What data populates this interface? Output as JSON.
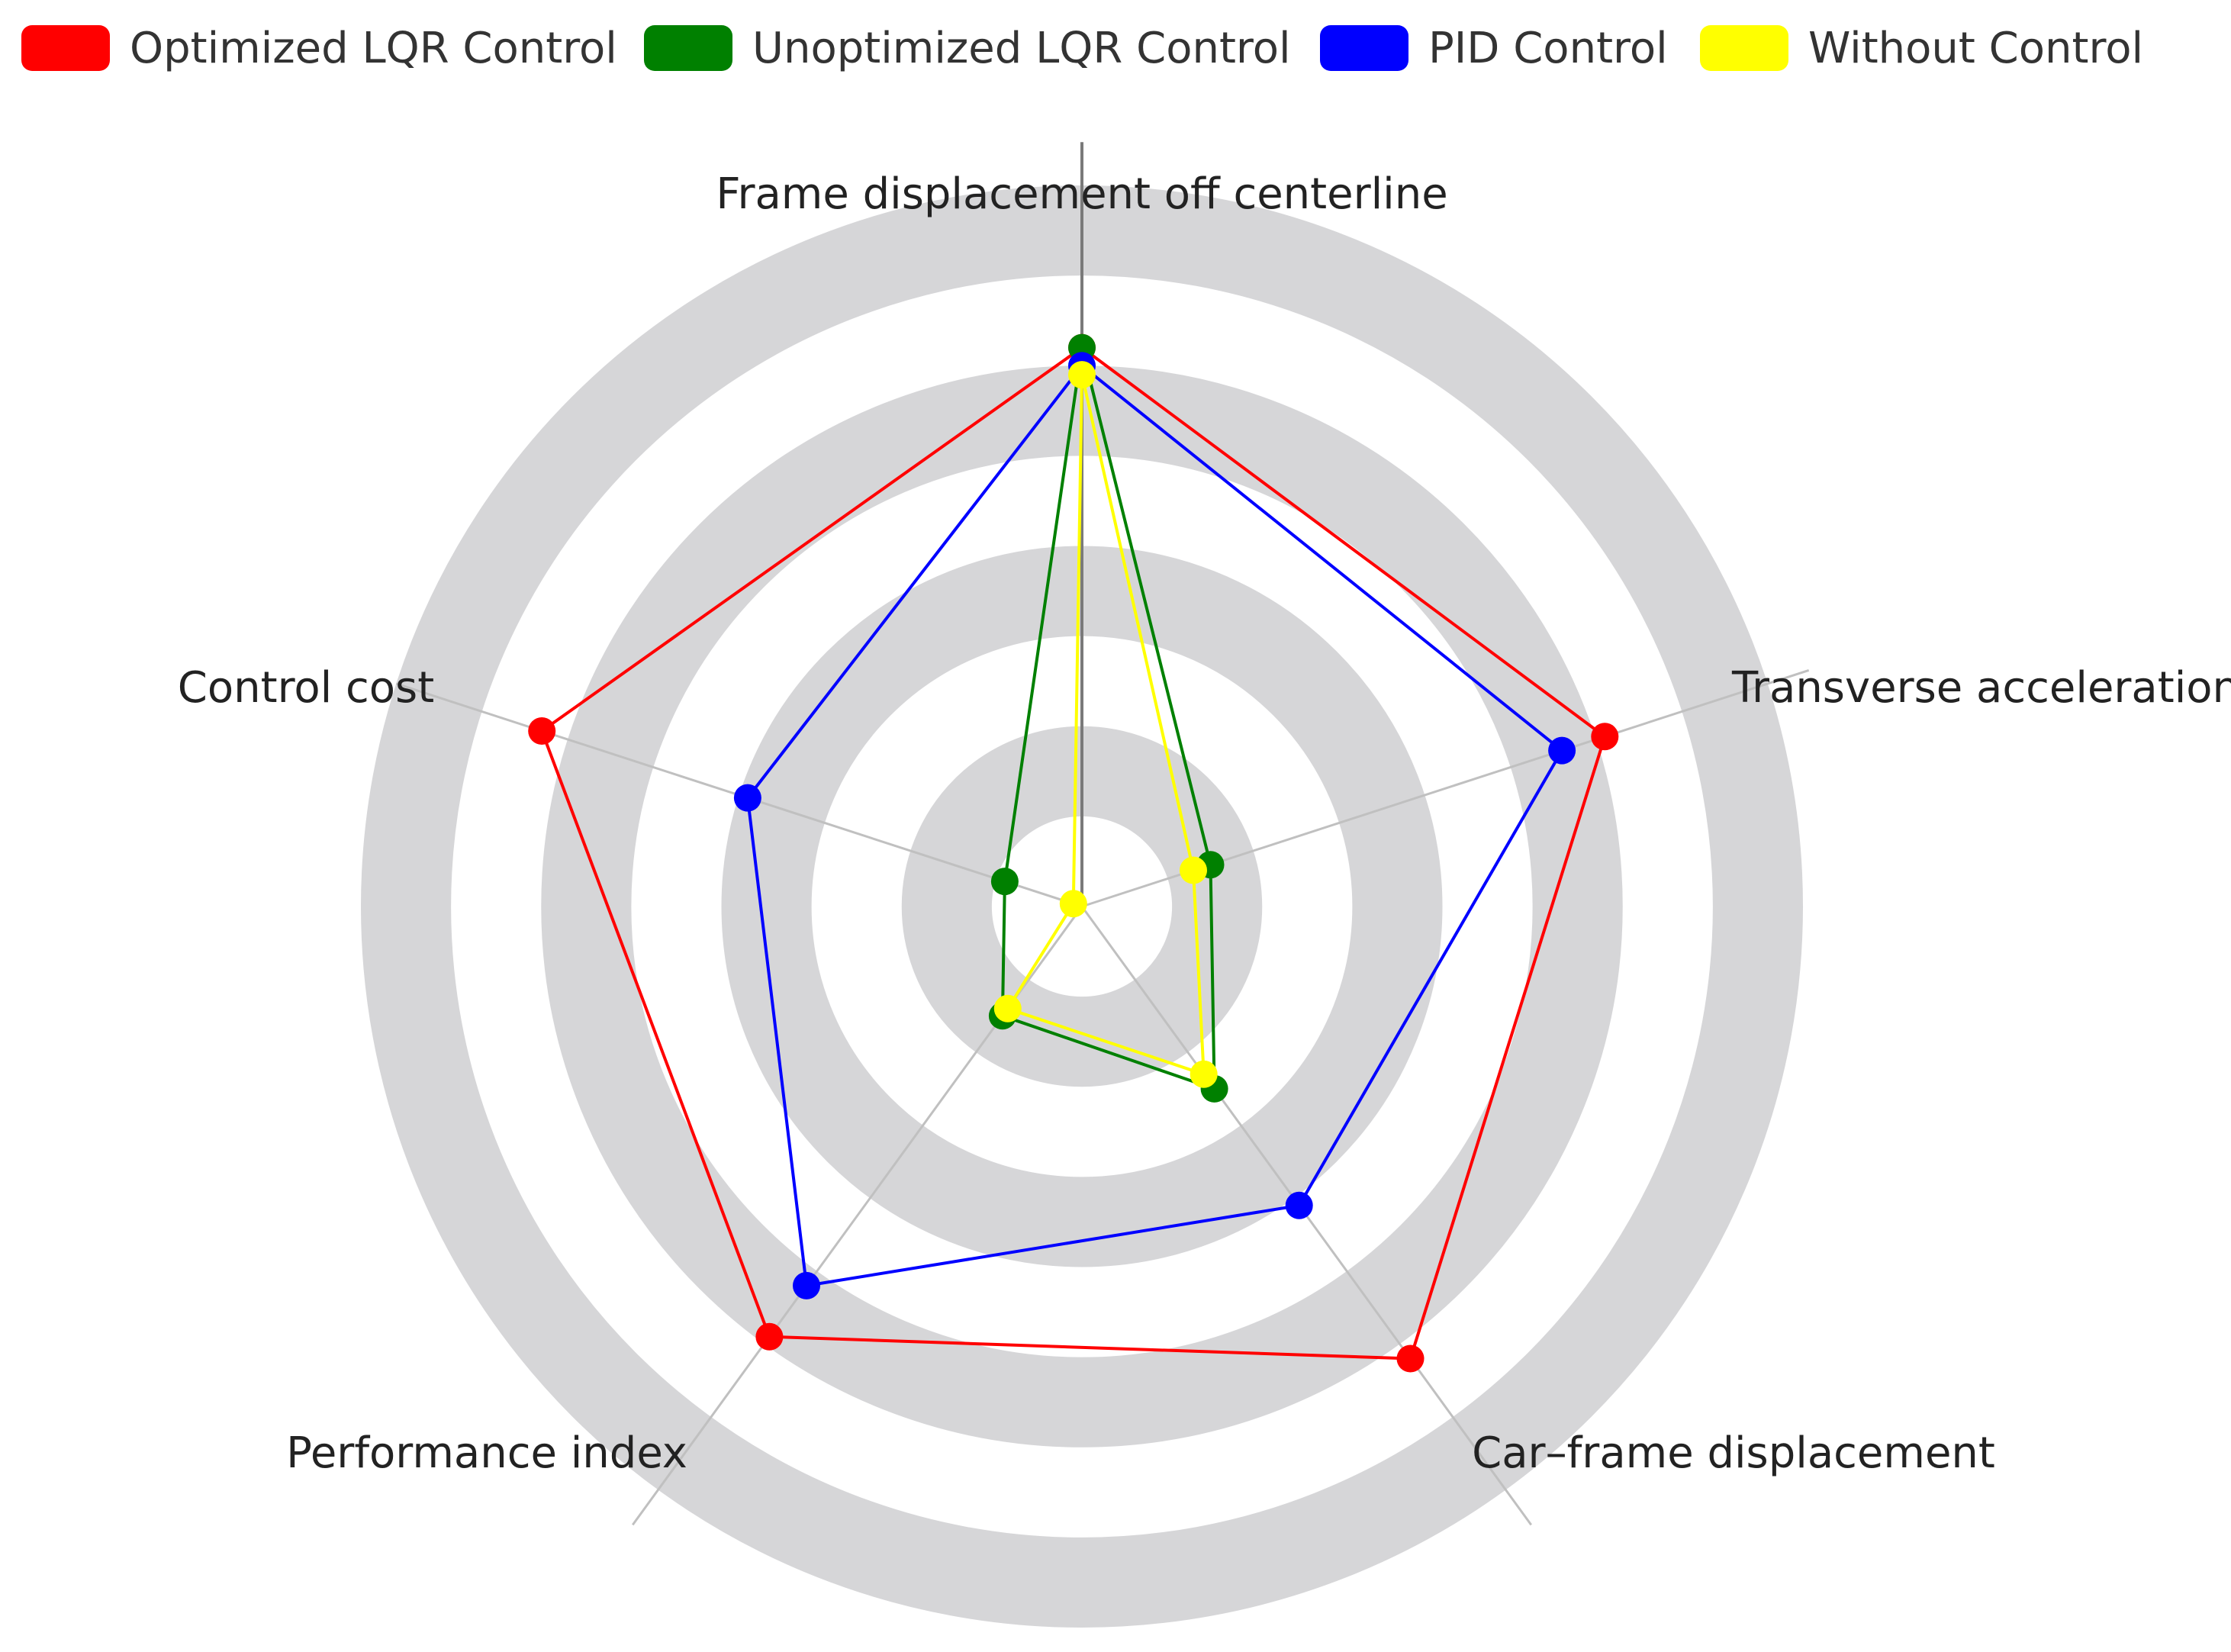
{
  "chart_data": {
    "type": "radar",
    "axes": [
      "Frame displacement off centerline",
      "Transverse acceleration",
      "Car–frame displacement",
      "Performance index",
      "Control cost"
    ],
    "range": [
      0,
      8
    ],
    "rings": 4,
    "series": [
      {
        "name": "Optimized LQR Control",
        "color": "#ff0000",
        "values": [
          6.2,
          6.1,
          6.2,
          5.9,
          6.3
        ]
      },
      {
        "name": "Unoptimized LQR Control",
        "color": "#008000",
        "values": [
          6.2,
          1.5,
          2.5,
          1.5,
          0.9
        ]
      },
      {
        "name": "PID Control",
        "color": "#0000ff",
        "values": [
          6.0,
          5.6,
          4.1,
          5.2,
          3.9
        ]
      },
      {
        "name": "Without Control",
        "color": "#ffff00",
        "values": [
          5.9,
          1.3,
          2.3,
          1.4,
          0.1
        ]
      }
    ],
    "legend_position": "top"
  },
  "colors": {
    "ring_band": "#d6d6d8",
    "axis_line": "#c0c0c0",
    "top_axis_line": "#7a7a7a"
  }
}
